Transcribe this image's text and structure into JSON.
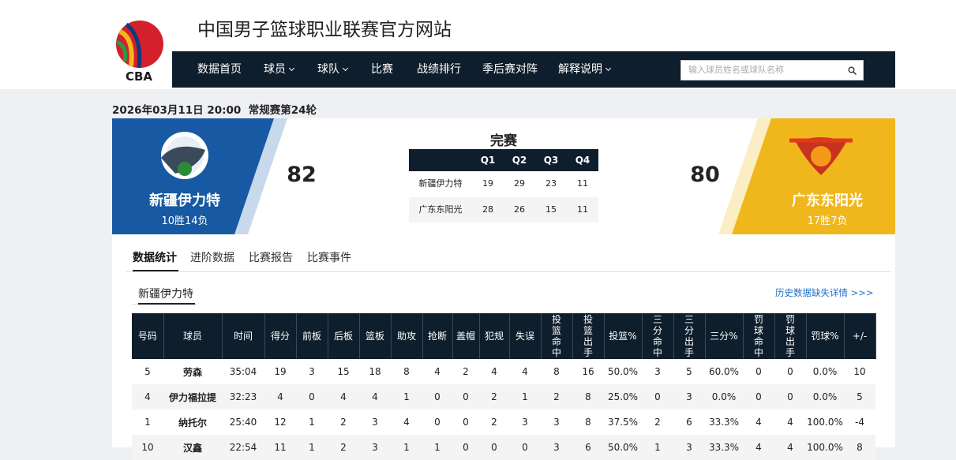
{
  "header": {
    "logo_text": "CBA",
    "title": "中国男子篮球职业联赛官方网站",
    "nav": [
      "数据首页",
      "球员",
      "球队",
      "比赛",
      "战绩排行",
      "季后赛对阵",
      "解释说明"
    ],
    "nav_dropdown": [
      false,
      true,
      true,
      false,
      false,
      false,
      true
    ],
    "search_placeholder": "输入球员姓名或球队名称"
  },
  "game": {
    "date_time": "2026年03月11日 20:00",
    "round": "常规赛第24轮",
    "status": "完赛",
    "home": {
      "name": "新疆伊力特",
      "record": "10胜14负",
      "score": 82
    },
    "away": {
      "name": "广东东阳光",
      "record": "17胜7负",
      "score": 80
    },
    "quarters": {
      "headers": [
        "Q1",
        "Q2",
        "Q3",
        "Q4"
      ],
      "rows": [
        [
          "新疆伊力特",
          19,
          29,
          23,
          11
        ],
        [
          "广东东阳光",
          28,
          26,
          15,
          11
        ]
      ]
    }
  },
  "tabs": [
    "数据统计",
    "进阶数据",
    "比赛报告",
    "比赛事件"
  ],
  "sub_tab": "新疆伊力特",
  "history_link": "历史数据缺失详情 >>>",
  "stats": {
    "columns": [
      "号码",
      "球员",
      "时间",
      "得分",
      "前板",
      "后板",
      "篮板",
      "助攻",
      "抢断",
      "盖帽",
      "犯规",
      "失误",
      "投篮命中",
      "投篮出手",
      "投篮%",
      "三分命中",
      "三分出手",
      "三分%",
      "罚球命中",
      "罚球出手",
      "罚球%",
      "+/-"
    ],
    "rows": [
      [
        5,
        "劳森",
        "35:04",
        19,
        3,
        15,
        18,
        8,
        4,
        2,
        4,
        4,
        8,
        16,
        "50.0%",
        3,
        5,
        "60.0%",
        0,
        0,
        "0.0%",
        10
      ],
      [
        4,
        "伊力福拉提",
        "32:23",
        4,
        0,
        4,
        4,
        1,
        0,
        0,
        2,
        1,
        2,
        8,
        "25.0%",
        0,
        3,
        "0.0%",
        0,
        0,
        "0.0%",
        5
      ],
      [
        1,
        "纳托尔",
        "25:40",
        12,
        1,
        2,
        3,
        4,
        0,
        0,
        2,
        3,
        3,
        8,
        "37.5%",
        2,
        6,
        "33.3%",
        4,
        4,
        "100.0%",
        -4
      ],
      [
        10,
        "汉鑫",
        "22:54",
        11,
        1,
        2,
        3,
        1,
        1,
        0,
        0,
        0,
        3,
        6,
        "50.0%",
        1,
        3,
        "33.3%",
        4,
        4,
        "100.0%",
        8
      ]
    ]
  }
}
